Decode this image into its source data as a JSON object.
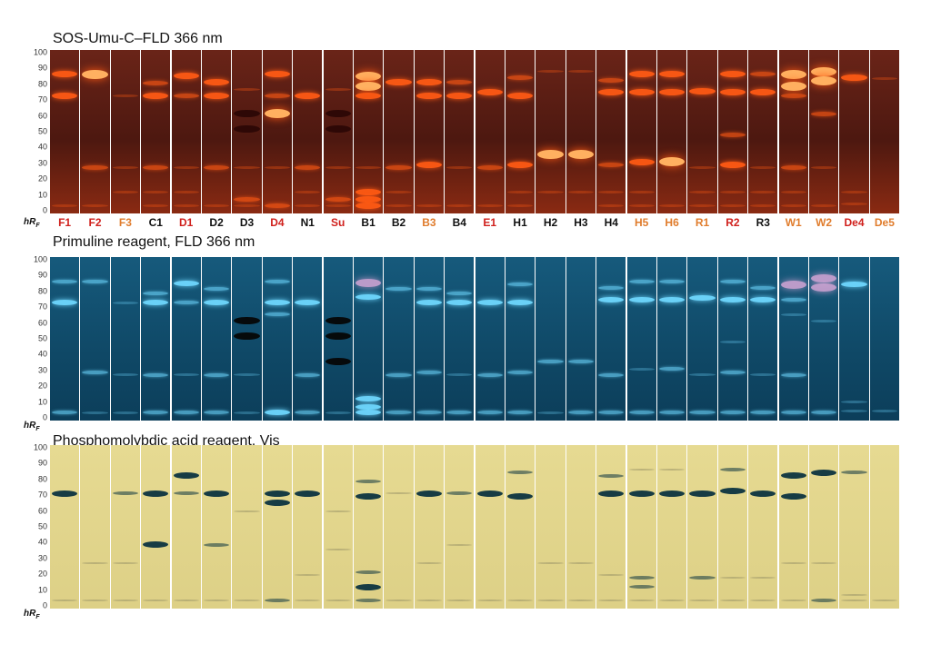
{
  "panels": [
    {
      "title": "SOS-Umu-C–FLD 366 nm",
      "key": "sos"
    },
    {
      "title": "Primuline reagent, FLD 366 nm",
      "key": "prim"
    },
    {
      "title": "Phosphomolybdic acid reagent, Vis",
      "key": "pma"
    }
  ],
  "axis": {
    "ticks": [
      "100",
      "90",
      "80",
      "70",
      "60",
      "50",
      "40",
      "30",
      "20",
      "10",
      "0"
    ],
    "label_main": "hR",
    "label_sub": "F"
  },
  "samples": [
    {
      "label": "F1",
      "color": "#d0201c"
    },
    {
      "label": "F2",
      "color": "#d0201c"
    },
    {
      "label": "F3",
      "color": "#e07c2c"
    },
    {
      "label": "C1",
      "color": "#111111"
    },
    {
      "label": "D1",
      "color": "#d0201c"
    },
    {
      "label": "D2",
      "color": "#111111"
    },
    {
      "label": "D3",
      "color": "#111111"
    },
    {
      "label": "D4",
      "color": "#d0201c"
    },
    {
      "label": "N1",
      "color": "#111111"
    },
    {
      "label": "Su",
      "color": "#d0201c"
    },
    {
      "label": "B1",
      "color": "#111111"
    },
    {
      "label": "B2",
      "color": "#111111"
    },
    {
      "label": "B3",
      "color": "#e07c2c"
    },
    {
      "label": "B4",
      "color": "#111111"
    },
    {
      "label": "E1",
      "color": "#d0201c"
    },
    {
      "label": "H1",
      "color": "#111111"
    },
    {
      "label": "H2",
      "color": "#111111"
    },
    {
      "label": "H3",
      "color": "#111111"
    },
    {
      "label": "H4",
      "color": "#111111"
    },
    {
      "label": "H5",
      "color": "#e07c2c"
    },
    {
      "label": "H6",
      "color": "#e07c2c"
    },
    {
      "label": "R1",
      "color": "#e07c2c"
    },
    {
      "label": "R2",
      "color": "#d0201c"
    },
    {
      "label": "R3",
      "color": "#111111"
    },
    {
      "label": "W1",
      "color": "#e07c2c"
    },
    {
      "label": "W2",
      "color": "#e07c2c"
    },
    {
      "label": "De4",
      "color": "#d0201c"
    },
    {
      "label": "De5",
      "color": "#e07c2c"
    }
  ],
  "colors": {
    "sos_bg": "#5a1c14",
    "sos_band": "#ff5a14",
    "sos_hot": "#ffb060",
    "prim_bg": "#0f4a68",
    "prim_band": "#6fd8ff",
    "prim_dark": "#060606",
    "pma_bg": "#e2d58a",
    "pma_band": "#0c3440",
    "pma_faint": "#a09a6a"
  },
  "bands": {
    "sos": [
      [
        [
          88,
          "s"
        ],
        [
          74,
          "s"
        ],
        [
          1,
          "f"
        ]
      ],
      [
        [
          88,
          "h"
        ],
        [
          26,
          "m"
        ],
        [
          1,
          "f"
        ]
      ],
      [
        [
          74,
          "f"
        ],
        [
          26,
          "f"
        ],
        [
          10,
          "f"
        ]
      ],
      [
        [
          82,
          "m"
        ],
        [
          74,
          "s"
        ],
        [
          26,
          "m"
        ],
        [
          10,
          "f"
        ],
        [
          1,
          "f"
        ]
      ],
      [
        [
          87,
          "s"
        ],
        [
          74,
          "m"
        ],
        [
          26,
          "f"
        ],
        [
          10,
          "f"
        ],
        [
          1,
          "f"
        ]
      ],
      [
        [
          83,
          "s"
        ],
        [
          74,
          "s"
        ],
        [
          26,
          "m"
        ],
        [
          1,
          "f"
        ]
      ],
      [
        [
          78,
          "f"
        ],
        [
          62,
          "d"
        ],
        [
          52,
          "d"
        ],
        [
          26,
          "f"
        ],
        [
          5,
          "m"
        ],
        [
          1,
          "f"
        ]
      ],
      [
        [
          88,
          "s"
        ],
        [
          74,
          "m"
        ],
        [
          62,
          "h"
        ],
        [
          26,
          "f"
        ],
        [
          1,
          "m"
        ]
      ],
      [
        [
          74,
          "s"
        ],
        [
          26,
          "m"
        ],
        [
          10,
          "f"
        ],
        [
          1,
          "f"
        ]
      ],
      [
        [
          78,
          "f"
        ],
        [
          62,
          "d"
        ],
        [
          52,
          "d"
        ],
        [
          26,
          "f"
        ],
        [
          5,
          "m"
        ],
        [
          1,
          "f"
        ]
      ],
      [
        [
          87,
          "h"
        ],
        [
          80,
          "h"
        ],
        [
          74,
          "s"
        ],
        [
          26,
          "f"
        ],
        [
          10,
          "s"
        ],
        [
          5,
          "s"
        ],
        [
          1,
          "s"
        ]
      ],
      [
        [
          83,
          "s"
        ],
        [
          26,
          "m"
        ],
        [
          10,
          "f"
        ],
        [
          1,
          "f"
        ]
      ],
      [
        [
          83,
          "s"
        ],
        [
          74,
          "s"
        ],
        [
          28,
          "s"
        ],
        [
          1,
          "f"
        ]
      ],
      [
        [
          83,
          "m"
        ],
        [
          74,
          "s"
        ],
        [
          26,
          "f"
        ],
        [
          1,
          "f"
        ]
      ],
      [
        [
          76,
          "s"
        ],
        [
          26,
          "m"
        ],
        [
          1,
          "f"
        ]
      ],
      [
        [
          86,
          "m"
        ],
        [
          74,
          "s"
        ],
        [
          28,
          "s"
        ],
        [
          10,
          "f"
        ],
        [
          1,
          "f"
        ]
      ],
      [
        [
          90,
          "f"
        ],
        [
          35,
          "h"
        ],
        [
          10,
          "f"
        ]
      ],
      [
        [
          90,
          "f"
        ],
        [
          35,
          "h"
        ],
        [
          10,
          "f"
        ]
      ],
      [
        [
          84,
          "m"
        ],
        [
          76,
          "s"
        ],
        [
          28,
          "m"
        ],
        [
          10,
          "f"
        ],
        [
          1,
          "f"
        ]
      ],
      [
        [
          88,
          "s"
        ],
        [
          76,
          "s"
        ],
        [
          30,
          "s"
        ],
        [
          10,
          "f"
        ],
        [
          1,
          "f"
        ]
      ],
      [
        [
          88,
          "s"
        ],
        [
          76,
          "s"
        ],
        [
          30,
          "h"
        ],
        [
          1,
          "f"
        ]
      ],
      [
        [
          77,
          "s"
        ],
        [
          26,
          "f"
        ],
        [
          10,
          "f"
        ],
        [
          1,
          "f"
        ]
      ],
      [
        [
          88,
          "s"
        ],
        [
          76,
          "s"
        ],
        [
          48,
          "m"
        ],
        [
          28,
          "s"
        ],
        [
          10,
          "f"
        ],
        [
          1,
          "f"
        ]
      ],
      [
        [
          88,
          "m"
        ],
        [
          76,
          "s"
        ],
        [
          26,
          "f"
        ],
        [
          10,
          "f"
        ],
        [
          1,
          "f"
        ]
      ],
      [
        [
          88,
          "h"
        ],
        [
          80,
          "h"
        ],
        [
          74,
          "m"
        ],
        [
          26,
          "m"
        ],
        [
          10,
          "f"
        ],
        [
          1,
          "f"
        ]
      ],
      [
        [
          90,
          "h"
        ],
        [
          84,
          "h"
        ],
        [
          62,
          "m"
        ],
        [
          26,
          "f"
        ],
        [
          1,
          "f"
        ]
      ],
      [
        [
          86,
          "s"
        ],
        [
          10,
          "f"
        ],
        [
          2,
          "f"
        ]
      ],
      [
        [
          85,
          "f"
        ]
      ]
    ],
    "prim": [
      [
        [
          88,
          "m"
        ],
        [
          74,
          "s"
        ],
        [
          1,
          "m"
        ]
      ],
      [
        [
          88,
          "m"
        ],
        [
          28,
          "m"
        ],
        [
          1,
          "f"
        ]
      ],
      [
        [
          74,
          "f"
        ],
        [
          26,
          "f"
        ],
        [
          1,
          "f"
        ]
      ],
      [
        [
          80,
          "m"
        ],
        [
          74,
          "s"
        ],
        [
          26,
          "m"
        ],
        [
          1,
          "m"
        ]
      ],
      [
        [
          87,
          "s"
        ],
        [
          74,
          "m"
        ],
        [
          26,
          "f"
        ],
        [
          1,
          "m"
        ]
      ],
      [
        [
          83,
          "m"
        ],
        [
          74,
          "s"
        ],
        [
          26,
          "m"
        ],
        [
          1,
          "m"
        ]
      ],
      [
        [
          62,
          "d"
        ],
        [
          52,
          "d"
        ],
        [
          26,
          "f"
        ],
        [
          1,
          "f"
        ]
      ],
      [
        [
          88,
          "m"
        ],
        [
          74,
          "s"
        ],
        [
          66,
          "m"
        ],
        [
          1,
          "s"
        ]
      ],
      [
        [
          74,
          "s"
        ],
        [
          26,
          "m"
        ],
        [
          1,
          "m"
        ]
      ],
      [
        [
          62,
          "d"
        ],
        [
          52,
          "d"
        ],
        [
          35,
          "d"
        ],
        [
          1,
          "f"
        ]
      ],
      [
        [
          87,
          "h"
        ],
        [
          78,
          "s"
        ],
        [
          10,
          "s"
        ],
        [
          5,
          "s"
        ],
        [
          1,
          "s"
        ]
      ],
      [
        [
          83,
          "m"
        ],
        [
          26,
          "m"
        ],
        [
          1,
          "m"
        ]
      ],
      [
        [
          83,
          "m"
        ],
        [
          74,
          "s"
        ],
        [
          28,
          "m"
        ],
        [
          1,
          "m"
        ]
      ],
      [
        [
          80,
          "m"
        ],
        [
          74,
          "s"
        ],
        [
          26,
          "f"
        ],
        [
          1,
          "m"
        ]
      ],
      [
        [
          74,
          "s"
        ],
        [
          26,
          "m"
        ],
        [
          1,
          "m"
        ]
      ],
      [
        [
          86,
          "m"
        ],
        [
          74,
          "s"
        ],
        [
          28,
          "m"
        ],
        [
          1,
          "m"
        ]
      ],
      [
        [
          35,
          "m"
        ],
        [
          1,
          "f"
        ]
      ],
      [
        [
          35,
          "m"
        ],
        [
          1,
          "m"
        ]
      ],
      [
        [
          84,
          "m"
        ],
        [
          76,
          "s"
        ],
        [
          26,
          "m"
        ],
        [
          1,
          "m"
        ]
      ],
      [
        [
          88,
          "m"
        ],
        [
          76,
          "s"
        ],
        [
          30,
          "f"
        ],
        [
          1,
          "m"
        ]
      ],
      [
        [
          88,
          "m"
        ],
        [
          76,
          "s"
        ],
        [
          30,
          "m"
        ],
        [
          1,
          "m"
        ]
      ],
      [
        [
          77,
          "s"
        ],
        [
          26,
          "f"
        ],
        [
          1,
          "m"
        ]
      ],
      [
        [
          88,
          "m"
        ],
        [
          76,
          "s"
        ],
        [
          48,
          "f"
        ],
        [
          28,
          "m"
        ],
        [
          1,
          "m"
        ]
      ],
      [
        [
          84,
          "m"
        ],
        [
          76,
          "s"
        ],
        [
          26,
          "f"
        ],
        [
          1,
          "m"
        ]
      ],
      [
        [
          86,
          "h"
        ],
        [
          76,
          "m"
        ],
        [
          66,
          "f"
        ],
        [
          26,
          "m"
        ],
        [
          1,
          "m"
        ]
      ],
      [
        [
          90,
          "h"
        ],
        [
          84,
          "h"
        ],
        [
          62,
          "f"
        ],
        [
          1,
          "m"
        ]
      ],
      [
        [
          86,
          "s"
        ],
        [
          8,
          "f"
        ],
        [
          2,
          "f"
        ]
      ],
      [
        [
          2,
          "f"
        ]
      ]
    ],
    "pma": [
      [
        [
          72,
          "s"
        ],
        [
          1,
          "f"
        ]
      ],
      [
        [
          26,
          "f"
        ],
        [
          1,
          "f"
        ]
      ],
      [
        [
          72,
          "m"
        ],
        [
          26,
          "f"
        ],
        [
          1,
          "f"
        ]
      ],
      [
        [
          72,
          "s"
        ],
        [
          38,
          "s"
        ],
        [
          1,
          "f"
        ]
      ],
      [
        [
          84,
          "s"
        ],
        [
          72,
          "m"
        ],
        [
          1,
          "f"
        ]
      ],
      [
        [
          72,
          "s"
        ],
        [
          38,
          "m"
        ],
        [
          1,
          "f"
        ]
      ],
      [
        [
          60,
          "f"
        ],
        [
          1,
          "f"
        ]
      ],
      [
        [
          72,
          "s"
        ],
        [
          66,
          "s"
        ],
        [
          1,
          "m"
        ]
      ],
      [
        [
          72,
          "s"
        ],
        [
          18,
          "f"
        ],
        [
          1,
          "f"
        ]
      ],
      [
        [
          60,
          "f"
        ],
        [
          35,
          "f"
        ],
        [
          1,
          "f"
        ]
      ],
      [
        [
          80,
          "m"
        ],
        [
          70,
          "s"
        ],
        [
          20,
          "m"
        ],
        [
          10,
          "s"
        ],
        [
          1,
          "m"
        ]
      ],
      [
        [
          72,
          "f"
        ],
        [
          1,
          "f"
        ]
      ],
      [
        [
          72,
          "s"
        ],
        [
          26,
          "f"
        ],
        [
          1,
          "f"
        ]
      ],
      [
        [
          72,
          "m"
        ],
        [
          38,
          "f"
        ],
        [
          1,
          "f"
        ]
      ],
      [
        [
          72,
          "s"
        ],
        [
          1,
          "f"
        ]
      ],
      [
        [
          86,
          "m"
        ],
        [
          70,
          "s"
        ],
        [
          1,
          "f"
        ]
      ],
      [
        [
          26,
          "f"
        ],
        [
          1,
          "f"
        ]
      ],
      [
        [
          26,
          "f"
        ],
        [
          1,
          "f"
        ]
      ],
      [
        [
          84,
          "m"
        ],
        [
          72,
          "s"
        ],
        [
          18,
          "f"
        ],
        [
          1,
          "f"
        ]
      ],
      [
        [
          88,
          "f"
        ],
        [
          72,
          "s"
        ],
        [
          16,
          "m"
        ],
        [
          10,
          "m"
        ],
        [
          1,
          "f"
        ]
      ],
      [
        [
          88,
          "f"
        ],
        [
          72,
          "s"
        ],
        [
          1,
          "f"
        ]
      ],
      [
        [
          72,
          "s"
        ],
        [
          16,
          "m"
        ],
        [
          1,
          "f"
        ]
      ],
      [
        [
          88,
          "m"
        ],
        [
          74,
          "s"
        ],
        [
          16,
          "f"
        ],
        [
          1,
          "f"
        ]
      ],
      [
        [
          72,
          "s"
        ],
        [
          16,
          "f"
        ],
        [
          1,
          "f"
        ]
      ],
      [
        [
          84,
          "s"
        ],
        [
          70,
          "s"
        ],
        [
          26,
          "f"
        ],
        [
          1,
          "f"
        ]
      ],
      [
        [
          86,
          "s"
        ],
        [
          26,
          "f"
        ],
        [
          1,
          "m"
        ]
      ],
      [
        [
          86,
          "m"
        ],
        [
          5,
          "f"
        ],
        [
          1,
          "f"
        ]
      ],
      [
        [
          1,
          "f"
        ]
      ]
    ]
  }
}
